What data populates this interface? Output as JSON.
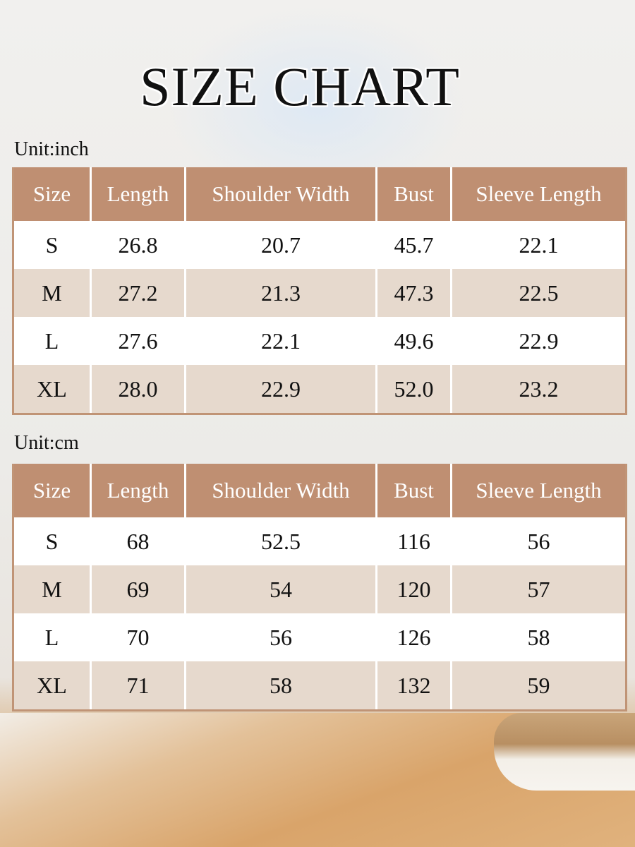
{
  "title": "SIZE CHART",
  "tables": [
    {
      "unit": "Unit:inch",
      "headers": [
        "Size",
        "Length",
        "Shoulder Width",
        "Bust",
        "Sleeve Length"
      ],
      "rows": [
        [
          "S",
          "26.8",
          "20.7",
          "45.7",
          "22.1"
        ],
        [
          "M",
          "27.2",
          "21.3",
          "47.3",
          "22.5"
        ],
        [
          "L",
          "27.6",
          "22.1",
          "49.6",
          "22.9"
        ],
        [
          "XL",
          "28.0",
          "22.9",
          "52.0",
          "23.2"
        ]
      ]
    },
    {
      "unit": "Unit:cm",
      "headers": [
        "Size",
        "Length",
        "Shoulder Width",
        "Bust",
        "Sleeve Length"
      ],
      "rows": [
        [
          "S",
          "68",
          "52.5",
          "116",
          "56"
        ],
        [
          "M",
          "69",
          "54",
          "120",
          "57"
        ],
        [
          "L",
          "70",
          "56",
          "126",
          "58"
        ],
        [
          "XL",
          "71",
          "58",
          "132",
          "59"
        ]
      ]
    }
  ],
  "colors": {
    "header": "#bf8f72",
    "alt_row": "#e6d9cd",
    "row": "#ffffff"
  }
}
